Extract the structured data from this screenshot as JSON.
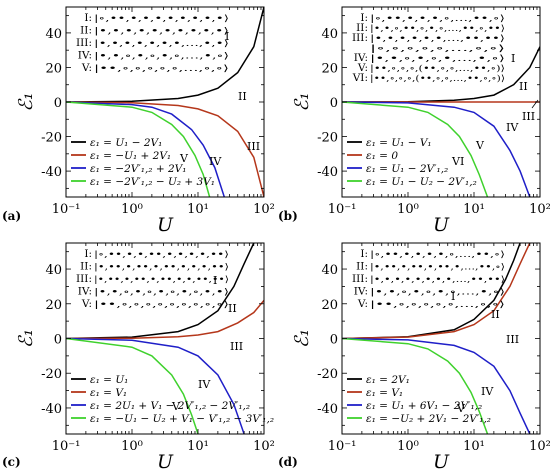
{
  "colors": {
    "black": "#000000",
    "red": "#b5371b",
    "blue": "#1f1fc8",
    "green": "#3fd12d"
  },
  "chart_data": [
    {
      "type": "line",
      "panel_label": "(a)",
      "ylabel": "ℰ₁",
      "xlabel": "U",
      "xscale": "log",
      "xlim": [
        0.1,
        100
      ],
      "ylim": [
        -55,
        55
      ],
      "xticks": [
        "10⁻¹",
        "10⁰",
        "10¹",
        "10²"
      ],
      "yticks": [
        "40",
        "20",
        "0",
        "-20",
        "-40"
      ],
      "grid": false,
      "states": [
        {
          "label": "I:",
          "config": "|∘,••,•,•,•,•,•,•,•,•⟩"
        },
        {
          "label": "II:",
          "config": "|•,•,•,•,•,•,•,•,•,•⟩"
        },
        {
          "label": "III:",
          "config": "|•,•,•,•,•,•,•,…,•,•⟩"
        },
        {
          "label": "IV:",
          "config": "|•,•,∘,•,∘,•,∘,…,•,∘⟩"
        },
        {
          "label": "V:",
          "config": "|••,∘,∘,∘,∘,∘,…,∘,∘⟩"
        }
      ],
      "region_labels": [
        "I",
        "II",
        "III",
        "IV",
        "V"
      ],
      "legend_position": "lower-left",
      "series": [
        {
          "name": "ε₁ = U₁ − 2V₁",
          "color": "#000000",
          "x": [
            0.1,
            1,
            5,
            10,
            20,
            40,
            70,
            100
          ],
          "y": [
            0,
            0.4,
            2,
            4,
            8,
            17,
            32,
            55
          ]
        },
        {
          "name": "ε₁ = −U₁ + 2V₁",
          "color": "#b5371b",
          "x": [
            0.1,
            1,
            5,
            10,
            20,
            40,
            70,
            100
          ],
          "y": [
            0,
            -0.4,
            -2,
            -4,
            -8,
            -17,
            -32,
            -55
          ]
        },
        {
          "name": "ε₁ = −2V′₁,₂ + 2V₁",
          "color": "#1f1fc8",
          "x": [
            0.1,
            1,
            2,
            4,
            8,
            12,
            18,
            25
          ],
          "y": [
            0,
            -1.5,
            -3,
            -7,
            -16,
            -25,
            -38,
            -55
          ]
        },
        {
          "name": "ε₁ = −2V′₁,₂ − U₂ + 3V₁",
          "color": "#3fd12d",
          "x": [
            0.1,
            1,
            2,
            4,
            6,
            9,
            12,
            15
          ],
          "y": [
            0,
            -3,
            -6,
            -13,
            -20,
            -31,
            -42,
            -55
          ]
        }
      ]
    },
    {
      "type": "line",
      "panel_label": "(b)",
      "ylabel": "ℰ₁",
      "xlabel": "U",
      "xscale": "log",
      "xlim": [
        0.1,
        100
      ],
      "ylim": [
        -55,
        55
      ],
      "xticks": [
        "10⁻¹",
        "10⁰",
        "10¹",
        "10²"
      ],
      "yticks": [
        "40",
        "20",
        "0",
        "-20",
        "-40"
      ],
      "grid": false,
      "states": [
        {
          "label": "I:",
          "config": "|∘,••,•,•,•,∘,…,••,∘⟩"
        },
        {
          "label": "II:",
          "config": "|•,•,∘,••,∘,•,∘,…,••,∘,••⟩"
        },
        {
          "label": "III:",
          "config": "|•,•,•,•,•,•,…,••,••⟩"
        },
        {
          "label": "",
          "config": "|∘,∘,∘,∘,∘,…,∘,∘⟩"
        },
        {
          "label": "IV:",
          "config": "|•,•,∘,•,∘,•,…,•,∘⟩"
        },
        {
          "label": "V:",
          "config": "|••,∘,∘,∘,(••,∘,∘,…,••,∘)⟩"
        },
        {
          "label": "VI:",
          "config": "|••,∘,∘,∘,(••,∘,∘,…,••,∘,∘)⟩"
        }
      ],
      "region_labels": [
        "I",
        "II",
        "III",
        "IV",
        "V",
        "VI"
      ],
      "legend_position": "lower-left",
      "series": [
        {
          "name": "ε₁ = U₁ − V₁",
          "color": "#000000",
          "x": [
            0.1,
            1,
            5,
            10,
            20,
            40,
            70,
            100
          ],
          "y": [
            0,
            0.2,
            1,
            2,
            4,
            10,
            20,
            32
          ]
        },
        {
          "name": "ε₁ = 0",
          "color": "#b5371b",
          "x": [
            0.1,
            100
          ],
          "y": [
            0,
            0
          ]
        },
        {
          "name": "ε₁ = U₁ − 2V′₁,₂",
          "color": "#1f1fc8",
          "x": [
            0.1,
            1,
            5,
            10,
            20,
            35,
            50,
            70
          ],
          "y": [
            0,
            -0.5,
            -3,
            -6,
            -14,
            -28,
            -40,
            -55
          ]
        },
        {
          "name": "ε₁ = U₁ − U₂ − 2V′₁,₂",
          "color": "#3fd12d",
          "x": [
            0.1,
            1,
            2,
            4,
            6,
            9,
            12,
            16
          ],
          "y": [
            0,
            -3,
            -6,
            -13,
            -20,
            -31,
            -42,
            -55
          ]
        }
      ]
    },
    {
      "type": "line",
      "panel_label": "(c)",
      "ylabel": "ℰ₁",
      "xlabel": "U",
      "xscale": "log",
      "xlim": [
        0.1,
        100
      ],
      "ylim": [
        -55,
        55
      ],
      "xticks": [
        "10⁻¹",
        "10⁰",
        "10¹",
        "10²"
      ],
      "yticks": [
        "40",
        "20",
        "0",
        "-20",
        "-40"
      ],
      "grid": false,
      "states": [
        {
          "label": "I:",
          "config": "|∘,••,•,•,••,•,•,•,•,••⟩"
        },
        {
          "label": "II:",
          "config": "|•,••,•,••,•,••,•,•,•,••⟩"
        },
        {
          "label": "III:",
          "config": "|•,••,•,••,•,••,•,•,••,••⟩"
        },
        {
          "label": "IV:",
          "config": "|•,•,∘,•,∘,•,∘,•,∘,•,•⟩"
        },
        {
          "label": "V:",
          "config": "|••,∘,∘,∘,∘,∘,∘,∘,∘,∘⟩"
        }
      ],
      "region_labels": [
        "I",
        "II",
        "III",
        "IV",
        "V"
      ],
      "legend_position": "lower-left",
      "series": [
        {
          "name": "ε₁ = U₁",
          "color": "#000000",
          "x": [
            0.1,
            1,
            5,
            10,
            20,
            35,
            50,
            70
          ],
          "y": [
            0,
            0.8,
            4,
            8,
            16,
            30,
            43,
            55
          ]
        },
        {
          "name": "ε₁ = V₁",
          "color": "#b5371b",
          "x": [
            0.1,
            1,
            5,
            10,
            20,
            40,
            70,
            100
          ],
          "y": [
            0,
            0.2,
            1,
            2,
            4,
            9,
            15,
            22
          ]
        },
        {
          "name": "ε₁ = 2U₁ + V₁ − 2V′₁,₂ − 2V′₁,₂",
          "color": "#1f1fc8",
          "x": [
            0.1,
            1,
            5,
            10,
            20,
            35,
            50
          ],
          "y": [
            0,
            -1,
            -5,
            -10,
            -21,
            -38,
            -55
          ]
        },
        {
          "name": "ε₁ = −U₁ − U₂ + V₁ − V′₁,₂ − 3V′₁,₂",
          "color": "#3fd12d",
          "x": [
            0.1,
            1,
            2,
            4,
            6,
            8,
            10
          ],
          "y": [
            0,
            -5,
            -10,
            -21,
            -32,
            -44,
            -55
          ]
        }
      ]
    },
    {
      "type": "line",
      "panel_label": "(d)",
      "ylabel": "ℰ₁",
      "xlabel": "U",
      "xscale": "log",
      "xlim": [
        0.1,
        100
      ],
      "ylim": [
        -55,
        55
      ],
      "xticks": [
        "10⁻¹",
        "10⁰",
        "10¹",
        "10²"
      ],
      "yticks": [
        "40",
        "20",
        "0",
        "-20",
        "-40"
      ],
      "grid": false,
      "states": [
        {
          "label": "I:",
          "config": "|∘,••,•,•,•,•,∘,…,••,∘⟩"
        },
        {
          "label": "II:",
          "config": "|•,••,•,••,•,••,•,…,••,∘⟩"
        },
        {
          "label": "III:",
          "config": "|•,•,•,•,•,•,•,•,…,••,••⟩"
        },
        {
          "label": "IV:",
          "config": "|•,•,∘,•,∘,•,∘,…,•,∘⟩"
        },
        {
          "label": "V:",
          "config": "|••,∘,∘,∘,∘,∘,…,∘,∘⟩"
        }
      ],
      "region_labels": [
        "I",
        "II",
        "III",
        "IV",
        "V"
      ],
      "legend_position": "lower-left",
      "series": [
        {
          "name": "ε₁ = 2V₁",
          "color": "#000000",
          "x": [
            0.1,
            1,
            5,
            10,
            20,
            30,
            40,
            50
          ],
          "y": [
            0,
            1,
            5,
            11,
            22,
            34,
            45,
            55
          ]
        },
        {
          "name": "ε₁ = V₁",
          "color": "#b5371b",
          "x": [
            0.1,
            1,
            5,
            10,
            20,
            35,
            50,
            70
          ],
          "y": [
            0,
            0.8,
            4,
            8,
            16,
            30,
            43,
            55
          ]
        },
        {
          "name": "ε₁ = U₁ + 6V₁ − 2V′₁,₂",
          "color": "#1f1fc8",
          "x": [
            0.1,
            1,
            5,
            10,
            20,
            35,
            50,
            70
          ],
          "y": [
            0,
            -0.8,
            -4,
            -8,
            -16,
            -30,
            -43,
            -55
          ]
        },
        {
          "name": "ε₁ = −U₂ + 2V₁ − 2V′₁,₂",
          "color": "#3fd12d",
          "x": [
            0.1,
            1,
            2,
            4,
            6,
            9,
            12,
            16
          ],
          "y": [
            0,
            -3,
            -6,
            -13,
            -20,
            -31,
            -42,
            -55
          ]
        }
      ]
    }
  ]
}
